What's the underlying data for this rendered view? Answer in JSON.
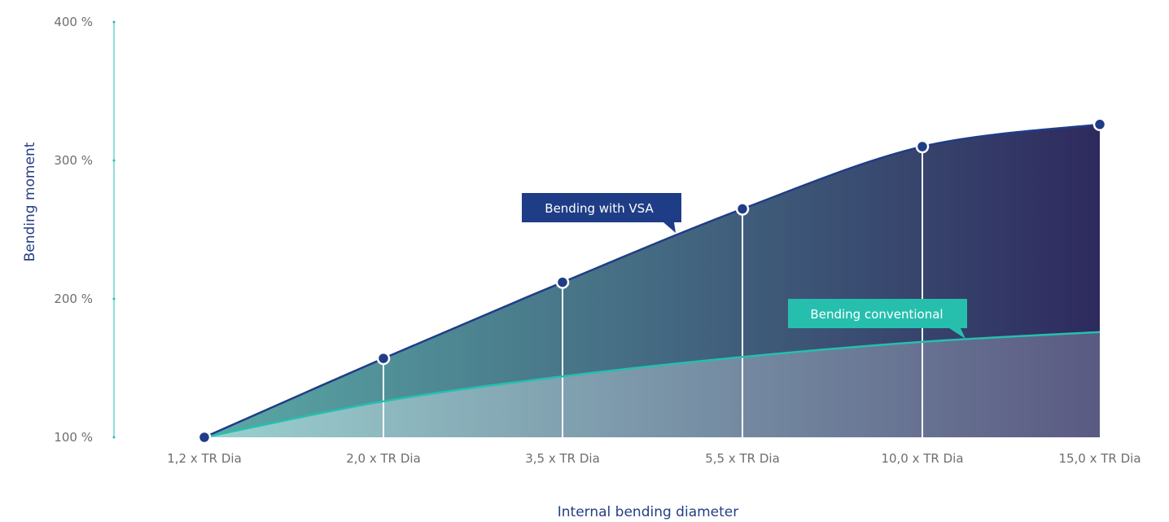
{
  "chart_data": {
    "type": "area",
    "xlabel": "Internal bending diameter",
    "ylabel": "Bending moment",
    "categories": [
      "1,2 x TR Dia",
      "2,0 x TR Dia",
      "3,5 x TR Dia",
      "5,5 x TR Dia",
      "10,0 x TR Dia",
      "15,0 x TR Dia"
    ],
    "y_tick_labels": [
      "100 %",
      "200 %",
      "300 %",
      "400 %"
    ],
    "y_ticks": [
      100,
      200,
      300,
      400
    ],
    "ylim": [
      100,
      400
    ],
    "grid": true,
    "series": [
      {
        "name": "Bending with VSA",
        "values": [
          100,
          157,
          212,
          265,
          310,
          326
        ],
        "markers": true,
        "color_start": "#5aaaa6",
        "color_end": "#2e2a5e",
        "line_color": "#1f3d86"
      },
      {
        "name": "Bending conventional",
        "values": [
          100,
          126,
          144,
          158,
          169,
          176
        ],
        "markers": false,
        "color_start": "#9bd1cf",
        "color_end": "#5a5a82",
        "line_color": "#26bfae"
      }
    ]
  },
  "colors": {
    "axis_teal": "#26bfae",
    "axis_navy": "#243f85",
    "callout_vsa": "#1f3d86",
    "callout_conventional": "#26bfae"
  }
}
